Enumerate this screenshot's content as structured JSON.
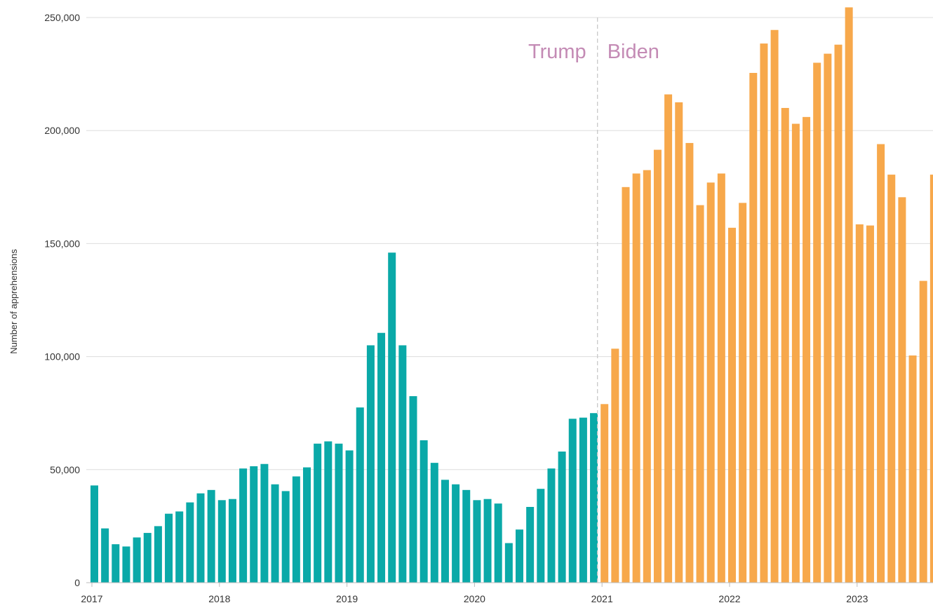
{
  "chart_data": {
    "type": "bar",
    "title": "",
    "ylabel": "Number of apprehensions",
    "xlabel": "",
    "ylim": [
      0,
      250000
    ],
    "yticks": [
      0,
      50000,
      100000,
      150000,
      200000,
      250000
    ],
    "ytick_labels": [
      "0",
      "50,000",
      "100,000",
      "150,000",
      "200,000",
      "250,000"
    ],
    "xtick_labels": [
      "2017",
      "2018",
      "2019",
      "2020",
      "2021",
      "2022",
      "2023"
    ],
    "grid": "horizontal",
    "legend": "none",
    "start_month": "2017-01",
    "series": [
      {
        "name": "Trump",
        "color": "#0aa9a8",
        "months": [
          "2017-01",
          "2017-02",
          "2017-03",
          "2017-04",
          "2017-05",
          "2017-06",
          "2017-07",
          "2017-08",
          "2017-09",
          "2017-10",
          "2017-11",
          "2017-12",
          "2018-01",
          "2018-02",
          "2018-03",
          "2018-04",
          "2018-05",
          "2018-06",
          "2018-07",
          "2018-08",
          "2018-09",
          "2018-10",
          "2018-11",
          "2018-12",
          "2019-01",
          "2019-02",
          "2019-03",
          "2019-04",
          "2019-05",
          "2019-06",
          "2019-07",
          "2019-08",
          "2019-09",
          "2019-10",
          "2019-11",
          "2019-12",
          "2020-01",
          "2020-02",
          "2020-03",
          "2020-04",
          "2020-05",
          "2020-06",
          "2020-07",
          "2020-08",
          "2020-09",
          "2020-10",
          "2020-11",
          "2020-12"
        ],
        "values": [
          43000,
          24000,
          17000,
          16000,
          20000,
          22000,
          25000,
          30500,
          31500,
          35500,
          39500,
          41000,
          36500,
          37000,
          50500,
          51500,
          52500,
          43500,
          40500,
          47000,
          51000,
          61500,
          62500,
          61500,
          58500,
          77500,
          105000,
          110500,
          146000,
          105000,
          82500,
          63000,
          53000,
          45500,
          43500,
          41000,
          36500,
          37000,
          35000,
          17500,
          23500,
          33500,
          41500,
          50500,
          58000,
          72500,
          73000,
          75000
        ]
      },
      {
        "name": "Biden",
        "color": "#f7a84b",
        "months": [
          "2021-01",
          "2021-02",
          "2021-03",
          "2021-04",
          "2021-05",
          "2021-06",
          "2021-07",
          "2021-08",
          "2021-09",
          "2021-10",
          "2021-11",
          "2021-12",
          "2022-01",
          "2022-02",
          "2022-03",
          "2022-04",
          "2022-05",
          "2022-06",
          "2022-07",
          "2022-08",
          "2022-09",
          "2022-10",
          "2022-11",
          "2022-12",
          "2023-01",
          "2023-02",
          "2023-03",
          "2023-04",
          "2023-05",
          "2023-06",
          "2023-07",
          "2023-08"
        ],
        "values": [
          79000,
          103500,
          175000,
          181000,
          182500,
          191500,
          216000,
          212500,
          194500,
          167000,
          177000,
          181000,
          157000,
          168000,
          225500,
          238500,
          244500,
          210000,
          203000,
          206000,
          230000,
          234000,
          238000,
          254500,
          158500,
          158000,
          194000,
          180500,
          170500,
          100500,
          133500,
          180500
        ]
      }
    ],
    "divider": {
      "between": [
        "2020-12",
        "2021-01"
      ],
      "left_label": "Trump",
      "right_label": "Biden",
      "label_color": "#c48bb5",
      "line_color": "#c8c8c8"
    }
  }
}
